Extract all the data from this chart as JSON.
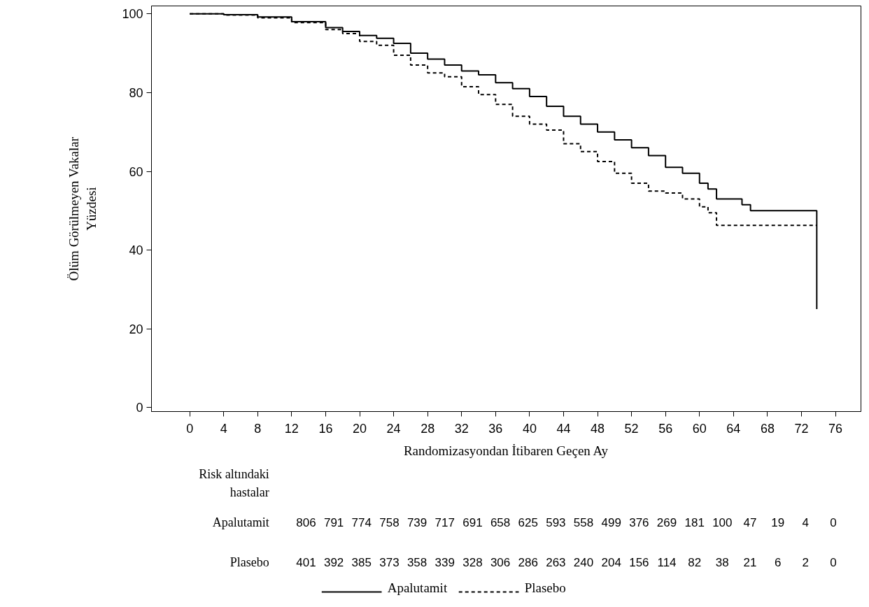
{
  "chart_data": {
    "type": "step",
    "xlabel": "Randomizasyondan İtibaren Geçen Ay",
    "ylabel": "Ölüm Görülmeyen Vakalar\nYüzdesi",
    "xlim": [
      -4.5,
      79
    ],
    "ylim": [
      -1,
      102
    ],
    "xticks": [
      0,
      4,
      8,
      12,
      16,
      20,
      24,
      28,
      32,
      36,
      40,
      44,
      48,
      52,
      56,
      60,
      64,
      68,
      72,
      76
    ],
    "yticks": [
      0,
      20,
      40,
      60,
      80,
      100
    ],
    "grid": false,
    "legend": "bottom",
    "marker": "none",
    "series": [
      {
        "name": "Apalutamit",
        "color": "#000000",
        "line_style": "solid",
        "x": [
          0,
          4,
          8,
          12,
          16,
          18,
          20,
          22,
          24,
          26,
          28,
          30,
          32,
          34,
          36,
          38,
          40,
          42,
          44,
          46,
          48,
          50,
          52,
          54,
          56,
          58,
          60,
          61,
          62,
          65,
          66,
          73.8
        ],
        "values": [
          100,
          99.8,
          99.2,
          98,
          96.5,
          95.5,
          94.5,
          93.8,
          92.5,
          90,
          88.5,
          87,
          85.5,
          84.5,
          82.5,
          81,
          79,
          76.5,
          74,
          72,
          70,
          68,
          66,
          64,
          61,
          59.5,
          57,
          55.5,
          53,
          51.5,
          50,
          25
        ]
      },
      {
        "name": "Plasebo",
        "color": "#000000",
        "line_style": "dashed",
        "x": [
          0,
          4,
          8,
          12,
          16,
          18,
          20,
          22,
          24,
          26,
          28,
          30,
          32,
          34,
          36,
          38,
          40,
          42,
          44,
          46,
          48,
          50,
          52,
          54,
          56,
          58,
          60,
          61,
          62,
          73.8
        ],
        "values": [
          100,
          99.7,
          99,
          97.8,
          96,
          95,
          93,
          92,
          89.5,
          87,
          85,
          84,
          81.5,
          79.5,
          77,
          74,
          72,
          70.5,
          67,
          65,
          62.5,
          59.5,
          57,
          55,
          54.5,
          53,
          51,
          49.5,
          46.3,
          46.3
        ]
      }
    ],
    "annotations": [
      "Risk altındaki\nhastalar",
      "Apalutamit",
      "806 791 774 758 739 717 691 658 625 593 558 499 376 269 181 100 47 19 4 0",
      "Plasebo",
      "401 392 385 373 358 339 328 306 286 263 240 204 156 114 82 38 21 6 2 0"
    ]
  }
}
